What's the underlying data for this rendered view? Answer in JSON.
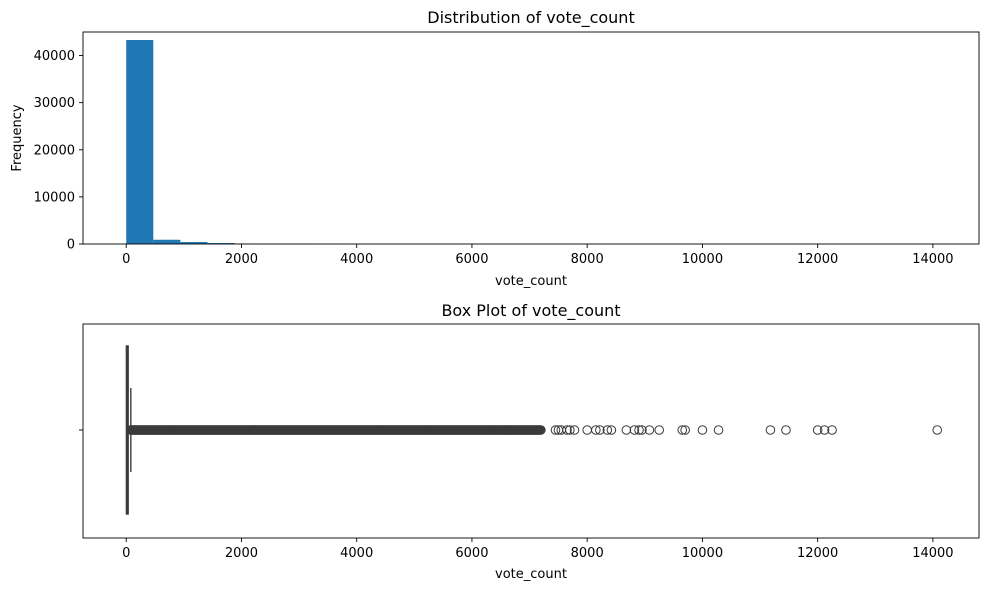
{
  "chart_data": [
    {
      "type": "histogram",
      "title": "Distribution of vote_count",
      "xlabel": "vote_count",
      "ylabel": "Frequency",
      "xlim": [
        -750,
        14800
      ],
      "ylim": [
        0,
        45000
      ],
      "xticks": [
        0,
        2000,
        4000,
        6000,
        8000,
        10000,
        12000,
        14000
      ],
      "yticks": [
        0,
        10000,
        20000,
        30000,
        40000
      ],
      "bin_width": 470,
      "bins": [
        {
          "x0": 0,
          "count": 43300
        },
        {
          "x0": 470,
          "count": 900
        },
        {
          "x0": 940,
          "count": 420
        },
        {
          "x0": 1410,
          "count": 210
        },
        {
          "x0": 1880,
          "count": 90
        },
        {
          "x0": 2350,
          "count": 45
        },
        {
          "x0": 2820,
          "count": 25
        },
        {
          "x0": 3290,
          "count": 15
        },
        {
          "x0": 3760,
          "count": 10
        }
      ],
      "bar_color": "#1f77b4",
      "grid": false
    },
    {
      "type": "box",
      "title": "Box Plot of vote_count",
      "xlabel": "vote_count",
      "xlim": [
        -750,
        14800
      ],
      "xticks": [
        0,
        2000,
        4000,
        6000,
        8000,
        10000,
        12000,
        14000
      ],
      "yticks": [
        ""
      ],
      "box": {
        "q1": 3,
        "median": 10,
        "q3": 34,
        "whisker_low": 0,
        "whisker_high": 80
      },
      "outliers_dense_range": [
        80,
        7200
      ],
      "outliers": [
        7450,
        7500,
        7550,
        7650,
        7700,
        7780,
        8000,
        8150,
        8220,
        8350,
        8420,
        8680,
        8820,
        8900,
        8950,
        9080,
        9250,
        9650,
        9700,
        10000,
        10280,
        11180,
        11450,
        12000,
        12120,
        12250,
        14075
      ],
      "grid": false
    }
  ]
}
